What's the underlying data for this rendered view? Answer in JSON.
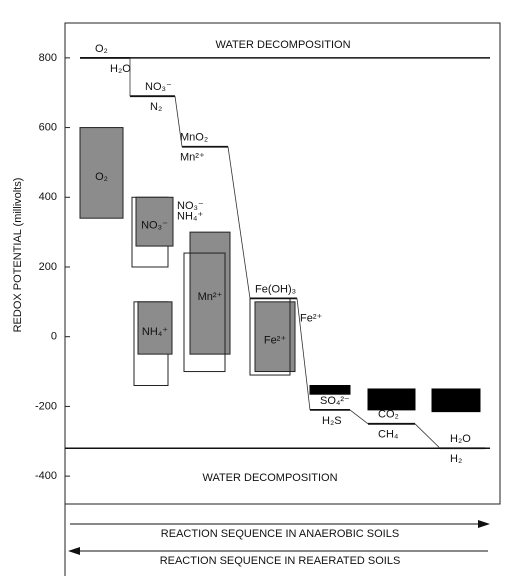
{
  "chart_data": {
    "type": "redox-ladder",
    "y_label": "REDOX POTENTIAL (millivolts)",
    "ylim": [
      -480,
      900
    ],
    "yticks": [
      -400,
      -200,
      0,
      200,
      400,
      600,
      800
    ],
    "water_lines": [
      {
        "label": "WATER DECOMPOSITION",
        "value": 800
      },
      {
        "label": "WATER DECOMPOSITION",
        "value": -320
      }
    ],
    "couples": [
      {
        "oxidant": "O₂",
        "reduced": "H₂O",
        "value": 800
      },
      {
        "oxidant": "NO₃⁻",
        "reduced": "N₂",
        "value": 690
      },
      {
        "oxidant": "MnO₂",
        "reduced": "Mn²⁺",
        "value": 545
      },
      {
        "oxidant": "Fe(OH)₃",
        "reduced": "Fe²⁺",
        "value": 110
      },
      {
        "oxidant": "SO₄²⁻",
        "reduced": "H₂S",
        "value": -210
      },
      {
        "oxidant": "CO₂",
        "reduced": "CH₄",
        "value": -250
      },
      {
        "oxidant": "H₂O",
        "reduced": "H₂",
        "value": -320
      }
    ],
    "ranges": [
      {
        "label": "O₂",
        "low": 340,
        "high": 600,
        "style": "filled"
      },
      {
        "low": 200,
        "high": 400,
        "style": "open"
      },
      {
        "label": "NO₃⁻",
        "low": 260,
        "high": 400,
        "style": "filled"
      },
      {
        "low": -140,
        "high": 100,
        "style": "open"
      },
      {
        "label": "NH₄⁺",
        "low": -50,
        "high": 100,
        "style": "filled"
      },
      {
        "label": "Mn²⁺",
        "low": -50,
        "high": 300,
        "style": "filled"
      },
      {
        "low": -100,
        "high": 240,
        "style": "open"
      },
      {
        "label": "Fe²⁺",
        "low": -100,
        "high": 100,
        "style": "filled"
      },
      {
        "low": -110,
        "high": 110,
        "style": "open"
      },
      {
        "low": -165,
        "high": -140,
        "style": "black"
      },
      {
        "low": -210,
        "high": -150,
        "style": "black"
      },
      {
        "low": -215,
        "high": -150,
        "style": "black"
      }
    ],
    "annotations": [
      "NO₃⁻",
      "NH₄⁺"
    ],
    "arrows": [
      {
        "label": "REACTION SEQUENCE IN ANAEROBIC SOILS",
        "direction": "right"
      },
      {
        "label": "REACTION SEQUENCE IN REAERATED SOILS",
        "direction": "left"
      }
    ]
  }
}
